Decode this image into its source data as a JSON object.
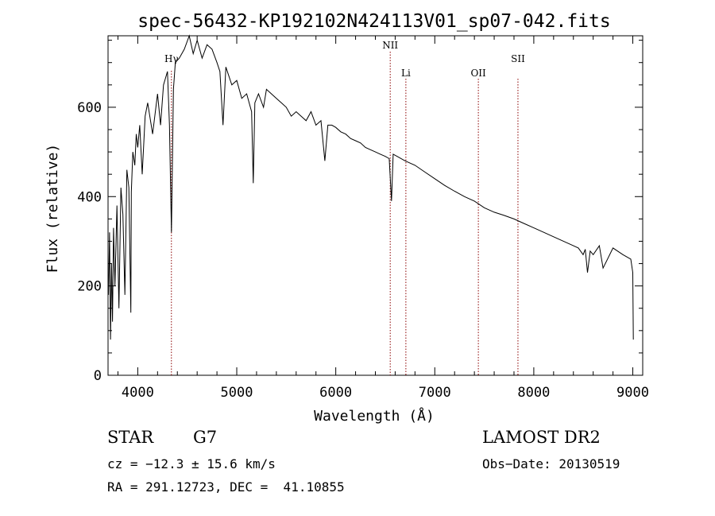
{
  "chart_data": {
    "type": "line",
    "title": "spec-56432-KP192102N424113V01_sp07-042.fits",
    "xlabel": "Wavelength (Å)",
    "ylabel": "Flux (relative)",
    "xlim": [
      3700,
      9100
    ],
    "ylim": [
      0,
      760
    ],
    "x_ticks": [
      4000,
      5000,
      6000,
      7000,
      8000,
      9000
    ],
    "y_ticks": [
      0,
      200,
      400,
      600
    ],
    "grid": false,
    "lines": [
      {
        "label": "Hγ",
        "x": 4340
      },
      {
        "label": "NII",
        "x": 6550
      },
      {
        "label": "Li",
        "x": 6708
      },
      {
        "label": "OII",
        "x": 7440
      },
      {
        "label": "SII",
        "x": 7840
      }
    ],
    "series": [
      {
        "x": [
          3705,
          3715,
          3725,
          3735,
          3745,
          3755,
          3770,
          3790,
          3810,
          3830,
          3850,
          3870,
          3890,
          3910,
          3930,
          3935,
          3950,
          3970,
          3985,
          4000,
          4020,
          4045,
          4075,
          4100,
          4150,
          4200,
          4230,
          4260,
          4300,
          4320,
          4340,
          4360,
          4380,
          4420,
          4470,
          4520,
          4560,
          4600,
          4650,
          4700,
          4750,
          4800,
          4830,
          4861,
          4890,
          4950,
          5000,
          5050,
          5100,
          5150,
          5167,
          5183,
          5220,
          5270,
          5300,
          5350,
          5400,
          5450,
          5500,
          5550,
          5600,
          5650,
          5700,
          5750,
          5800,
          5850,
          5890,
          5920,
          5960,
          6000,
          6050,
          6100,
          6150,
          6200,
          6250,
          6300,
          6350,
          6400,
          6450,
          6500,
          6540,
          6563,
          6580,
          6620,
          6700,
          6800,
          6900,
          7000,
          7100,
          7200,
          7300,
          7400,
          7500,
          7600,
          7700,
          7800,
          7900,
          8000,
          8100,
          8200,
          8300,
          8400,
          8450,
          8498,
          8520,
          8542,
          8570,
          8600,
          8662,
          8700,
          8800,
          8900,
          8980,
          9000,
          9005
        ],
        "values": [
          180,
          320,
          80,
          250,
          120,
          330,
          200,
          380,
          150,
          420,
          360,
          180,
          460,
          420,
          140,
          410,
          500,
          470,
          540,
          510,
          560,
          450,
          580,
          610,
          540,
          630,
          560,
          650,
          680,
          560,
          320,
          640,
          700,
          710,
          730,
          760,
          720,
          750,
          710,
          740,
          730,
          700,
          680,
          560,
          690,
          650,
          660,
          620,
          630,
          590,
          430,
          610,
          630,
          600,
          640,
          630,
          620,
          610,
          600,
          580,
          590,
          580,
          570,
          590,
          560,
          570,
          480,
          560,
          560,
          555,
          545,
          540,
          530,
          525,
          520,
          510,
          505,
          500,
          495,
          490,
          485,
          390,
          495,
          490,
          480,
          470,
          455,
          440,
          425,
          412,
          400,
          390,
          375,
          365,
          358,
          350,
          340,
          330,
          320,
          310,
          300,
          290,
          285,
          270,
          282,
          230,
          278,
          270,
          290,
          240,
          285,
          270,
          260,
          230,
          80
        ]
      }
    ]
  },
  "info": {
    "object_type": "STAR",
    "subclass": "G7",
    "survey": "LAMOST DR2",
    "cz": "cz = −12.3 ± 15.6 km/s",
    "obs_date": "Obs−Date: 20130519",
    "coords": "RA = 291.12723, DEC =  41.10855"
  }
}
